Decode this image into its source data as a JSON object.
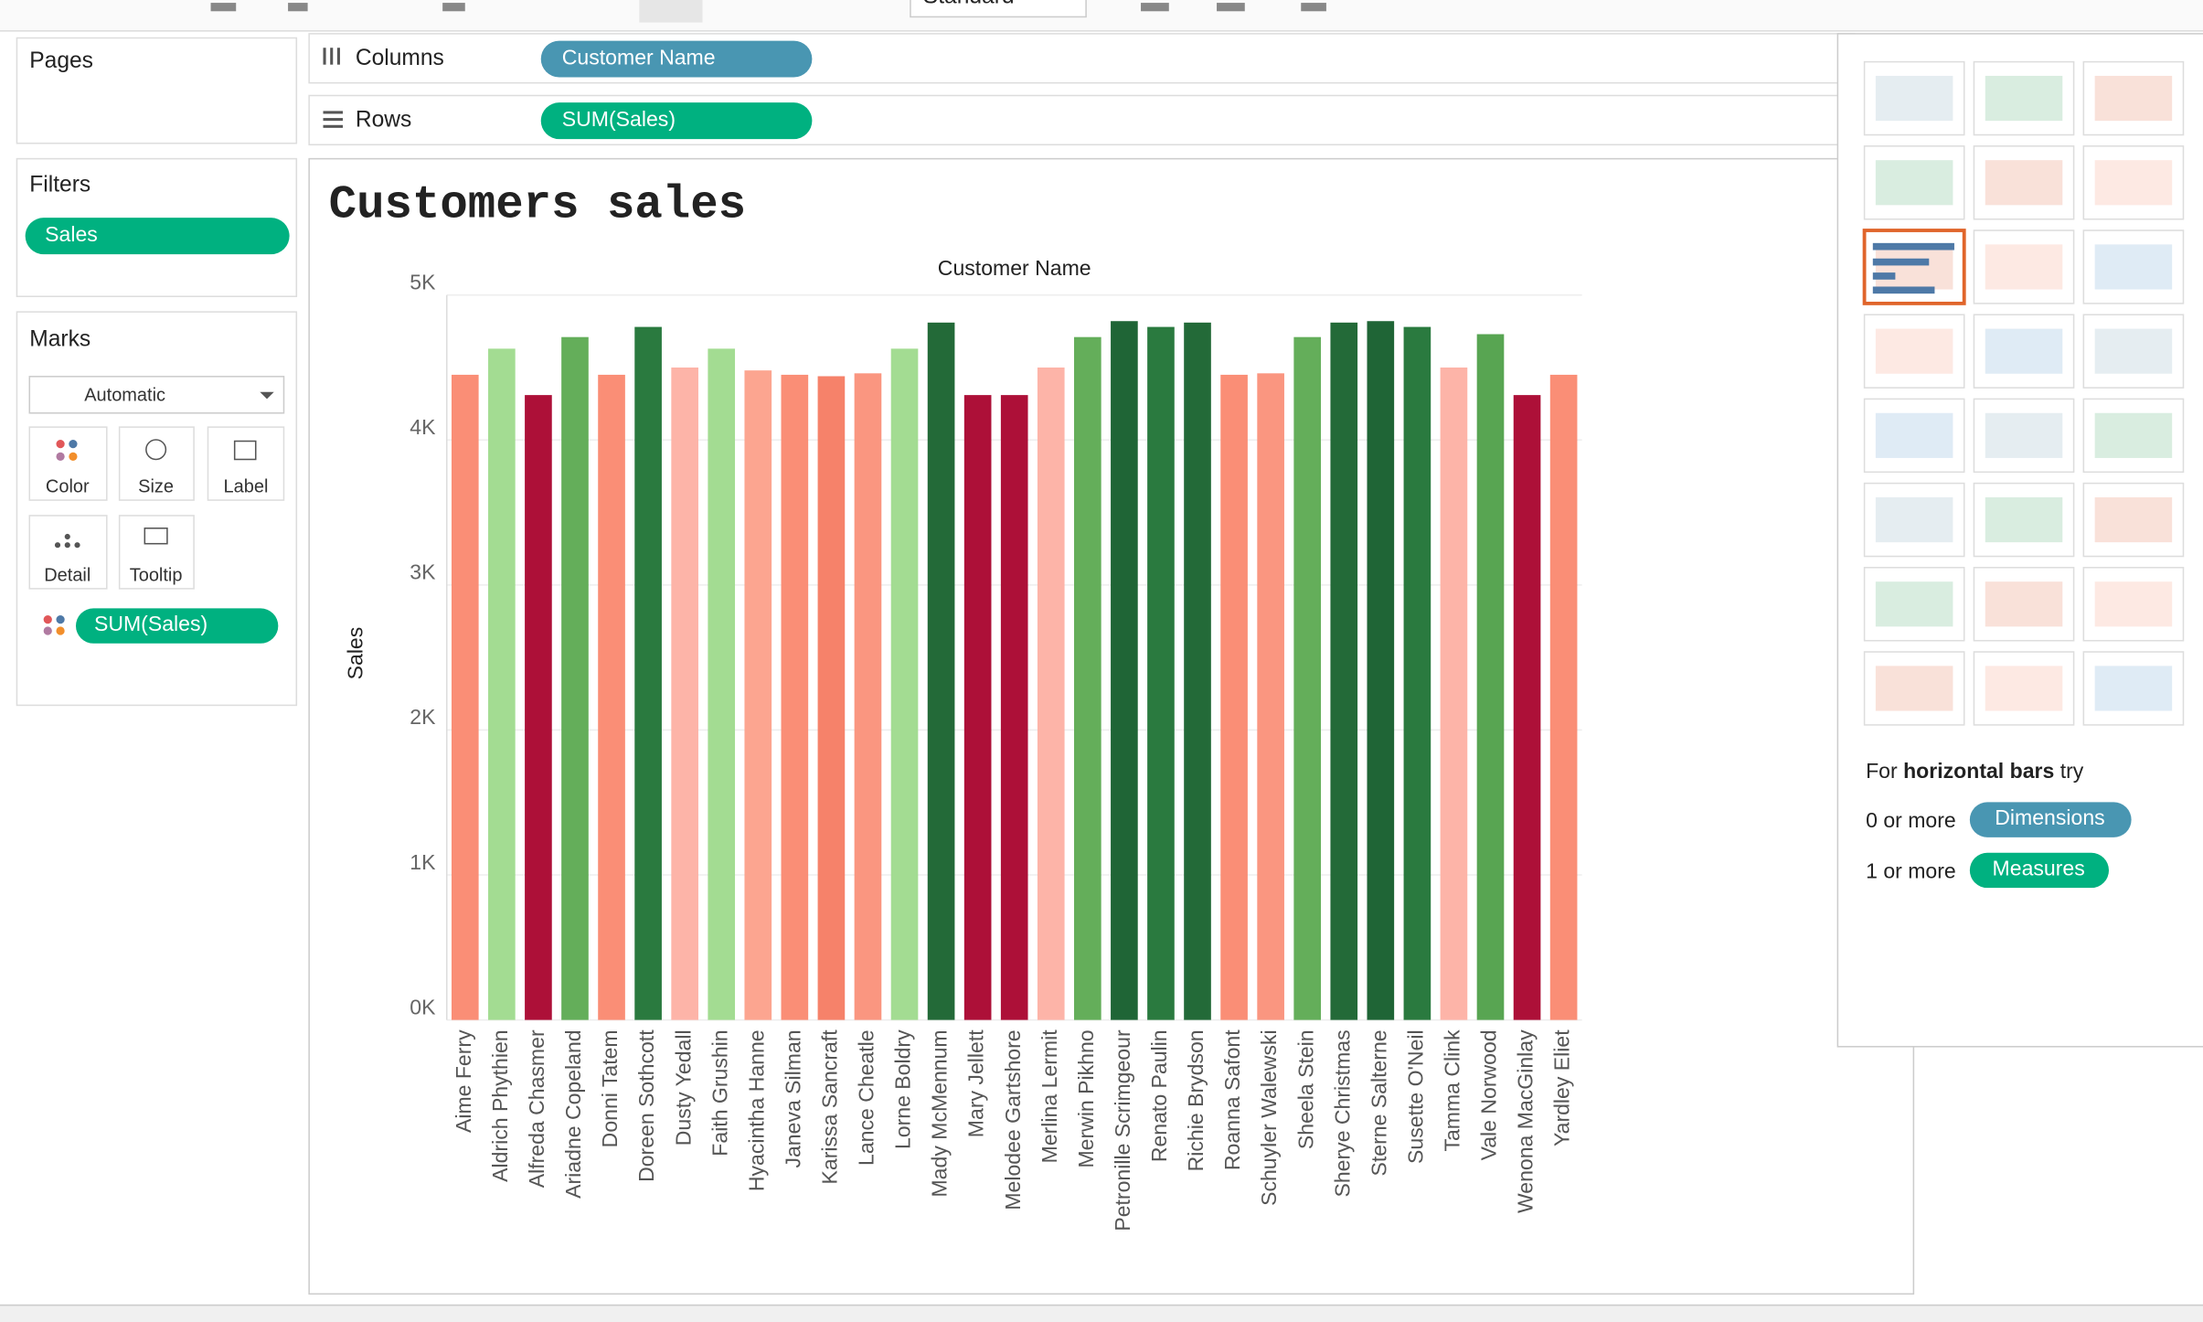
{
  "toolbar": {
    "view_size": "Standard"
  },
  "shelves": {
    "columns_label": "Columns",
    "columns_pill": "Customer Name",
    "rows_label": "Rows",
    "rows_pill": "SUM(Sales)"
  },
  "pages": {
    "title": "Pages"
  },
  "filters": {
    "title": "Filters",
    "pill": "Sales"
  },
  "marks": {
    "title": "Marks",
    "mark_type": "Automatic",
    "buttons": [
      "Color",
      "Size",
      "Label",
      "Detail",
      "Tooltip"
    ],
    "pill": "SUM(Sales)"
  },
  "show_me": {
    "hint_prefix": "For",
    "hint_bold": "horizontal bars",
    "hint_suffix": "try",
    "dimensions_count": "0 or more",
    "dimensions": "Dimensions",
    "measures_count": "1 or more",
    "measures": "Measures"
  },
  "chart_data": {
    "type": "bar",
    "title": "Customers sales",
    "x_label": "Customer Name",
    "y_label": "Sales",
    "categories": [
      "Aime Ferry",
      "Aldrich Phythien",
      "Alfreda Chasmer",
      "Ariadne Copeland",
      "Donni Tatem",
      "Doreen Sothcott",
      "Dusty Yedall",
      "Faith Grushin",
      "Hyacintha Hanne",
      "Janeva Silman",
      "Karissa Sancraft",
      "Lance Cheatle",
      "Lorne Boldry",
      "Mady McMennum",
      "Mary Jellett",
      "Melodee Gartshore",
      "Merlina Lermit",
      "Merwin Pikhno",
      "Petronille Scrimgeour",
      "Renato Paulin",
      "Richie Brydson",
      "Roanna Safont",
      "Schuyler Walewski",
      "Sheela Stein",
      "Sherye Christmas",
      "Sterne Salterne",
      "Susette O'Neil",
      "Tamma Clink",
      "Vale Norwood",
      "Wenona MacGinlay",
      "Yardley Eliet"
    ],
    "values": [
      4450,
      4630,
      4310,
      4710,
      4450,
      4780,
      4500,
      4630,
      4480,
      4450,
      4440,
      4460,
      4630,
      4810,
      4310,
      4310,
      4500,
      4710,
      4820,
      4780,
      4810,
      4450,
      4460,
      4710,
      4810,
      4820,
      4780,
      4500,
      4730,
      4310,
      4450
    ],
    "colors": [
      "#fa8e76",
      "#a3dc92",
      "#ad1038",
      "#64ae5a",
      "#fa8e76",
      "#2a7a3f",
      "#fdb4a8",
      "#a3dc92",
      "#fca590",
      "#fa8e76",
      "#f6826a",
      "#fa9680",
      "#a3dc92",
      "#236a38",
      "#ad1038",
      "#ad1038",
      "#fdb4a8",
      "#64ae5a",
      "#1f6536",
      "#2a7a3f",
      "#236a38",
      "#fa8e76",
      "#fa9680",
      "#64ae5a",
      "#236a38",
      "#1f6536",
      "#2a7a3f",
      "#fdb4a8",
      "#58a552",
      "#ad1038",
      "#fa8e76"
    ],
    "ylim": [
      0,
      5000
    ],
    "yticks": [
      {
        "value": 0,
        "label": "0K"
      },
      {
        "value": 1000,
        "label": "1K"
      },
      {
        "value": 2000,
        "label": "2K"
      },
      {
        "value": 3000,
        "label": "3K"
      },
      {
        "value": 4000,
        "label": "4K"
      },
      {
        "value": 5000,
        "label": "5K"
      }
    ],
    "grid": true
  }
}
